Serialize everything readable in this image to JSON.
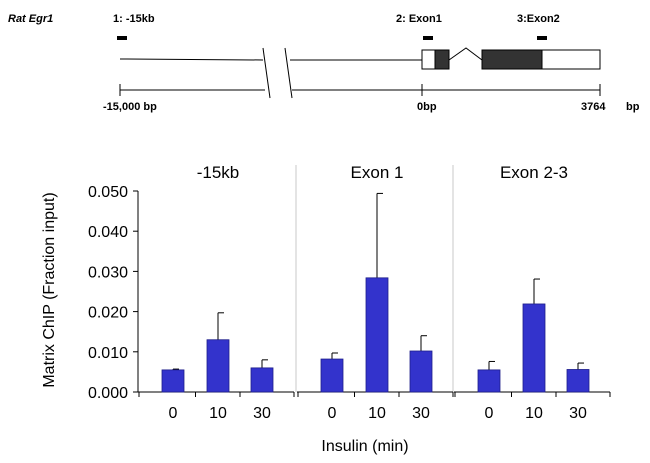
{
  "gene_map": {
    "gene": "Rat Egr1",
    "probes": [
      "1: -15kb",
      "2: Exon1",
      "3:Exon2"
    ],
    "scale_labels": [
      "-15,000  bp",
      "0bp",
      "3764",
      "bp"
    ]
  },
  "chart_data": {
    "type": "bar",
    "ylabel": "Matrix ChIP (Fraction input)",
    "xlabel": "Insulin (min)",
    "ylim": [
      0,
      0.05
    ],
    "yticks": [
      "0.000",
      "0.010",
      "0.020",
      "0.030",
      "0.040",
      "0.050"
    ],
    "bar_color": "#3333cc",
    "panels": [
      {
        "title": "-15kb",
        "categories": [
          "0",
          "10",
          "30"
        ],
        "values": [
          0.0055,
          0.013,
          0.006
        ],
        "errors": [
          0.0002,
          0.0067,
          0.002
        ]
      },
      {
        "title": "Exon 1",
        "categories": [
          "0",
          "10",
          "30"
        ],
        "values": [
          0.0082,
          0.0284,
          0.0102
        ],
        "errors": [
          0.0015,
          0.021,
          0.0038
        ]
      },
      {
        "title": "Exon 2-3",
        "categories": [
          "0",
          "10",
          "30"
        ],
        "values": [
          0.0055,
          0.0219,
          0.0056
        ],
        "errors": [
          0.0021,
          0.0062,
          0.0016
        ]
      }
    ]
  }
}
